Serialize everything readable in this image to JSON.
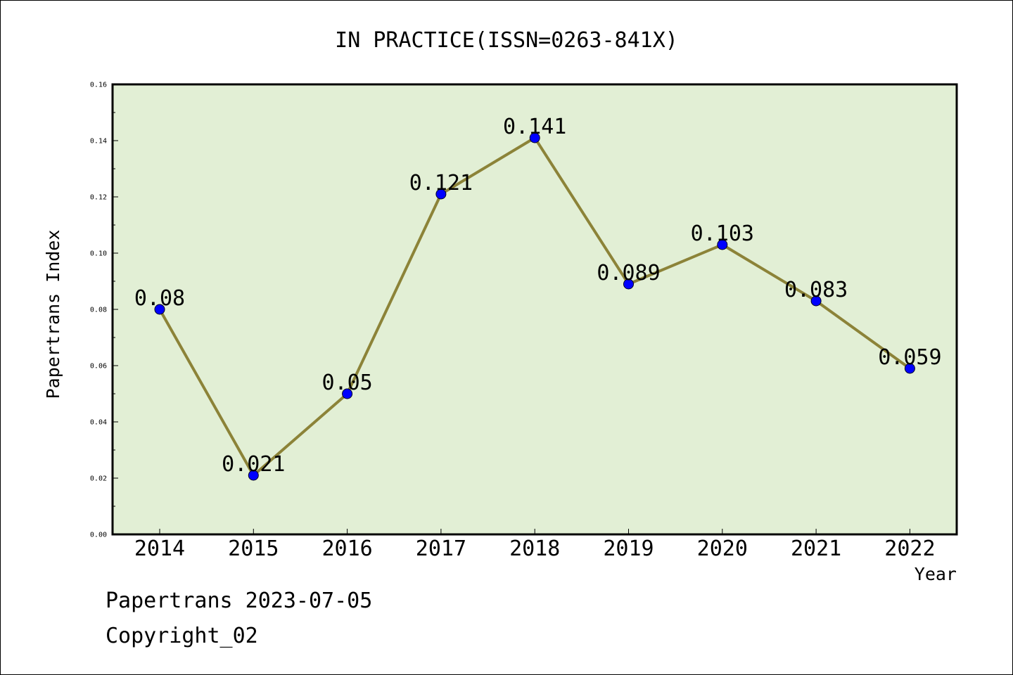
{
  "chart_data": {
    "type": "line",
    "title": "IN PRACTICE(ISSN=0263-841X)",
    "xlabel": "Year",
    "ylabel": "Papertrans Index",
    "categories": [
      "2014",
      "2015",
      "2016",
      "2017",
      "2018",
      "2019",
      "2020",
      "2021",
      "2022"
    ],
    "values": [
      0.08,
      0.021,
      0.05,
      0.121,
      0.141,
      0.089,
      0.103,
      0.083,
      0.059
    ],
    "data_labels": [
      "0.08",
      "0.021",
      "0.05",
      "0.121",
      "0.141",
      "0.089",
      "0.103",
      "0.083",
      "0.059"
    ],
    "ylim": [
      0,
      0.16
    ],
    "yticks": [
      "0.00",
      "0.02",
      "0.04",
      "0.06",
      "0.08",
      "0.10",
      "0.12",
      "0.14",
      "0.16"
    ],
    "grid": false,
    "colors": {
      "plot_background": "#e2efd5",
      "line": "#8c8338",
      "marker": "#0000ff"
    }
  },
  "footer": {
    "line1": "Papertrans 2023-07-05",
    "line2": "Copyright_02"
  }
}
